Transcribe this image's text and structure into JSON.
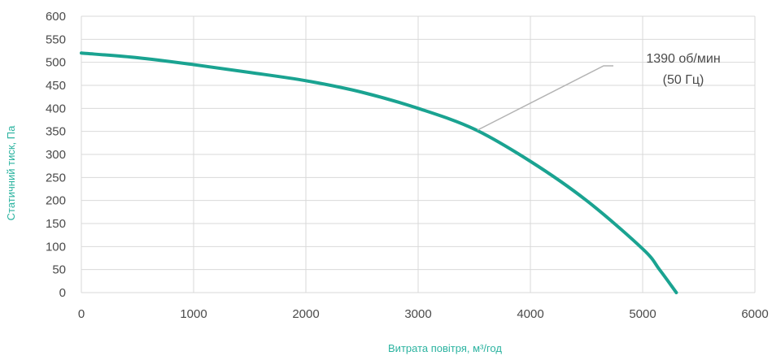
{
  "chart_data": {
    "type": "line",
    "title": "",
    "xlabel": "Витрата повітря, м³/год",
    "ylabel": "Статичний тиск, Па",
    "xlim": [
      0,
      6000
    ],
    "ylim": [
      0,
      600
    ],
    "x_ticks": [
      0,
      1000,
      2000,
      3000,
      4000,
      5000,
      6000
    ],
    "y_ticks": [
      0,
      50,
      100,
      150,
      200,
      250,
      300,
      350,
      400,
      450,
      500,
      550,
      600
    ],
    "grid": true,
    "legend": "none",
    "series": [
      {
        "color": "#1aa391",
        "x": [
          0,
          500,
          1000,
          1500,
          2000,
          2500,
          3000,
          3500,
          4000,
          4500,
          5000,
          5150,
          5300
        ],
        "y": [
          520,
          510,
          495,
          478,
          460,
          435,
          400,
          355,
          285,
          200,
          95,
          50,
          0
        ]
      }
    ],
    "annotations": [
      {
        "lines": [
          "1390 об/мин",
          "(50 Гц)"
        ],
        "point_x": 3530,
        "point_y": 353
      }
    ]
  },
  "colors": {
    "line": "#1aa391",
    "grid": "#d9d9d9",
    "axis_title": "#2bb3a0",
    "tick_text": "#4a4a4a",
    "leader": "#b3b3b3"
  }
}
